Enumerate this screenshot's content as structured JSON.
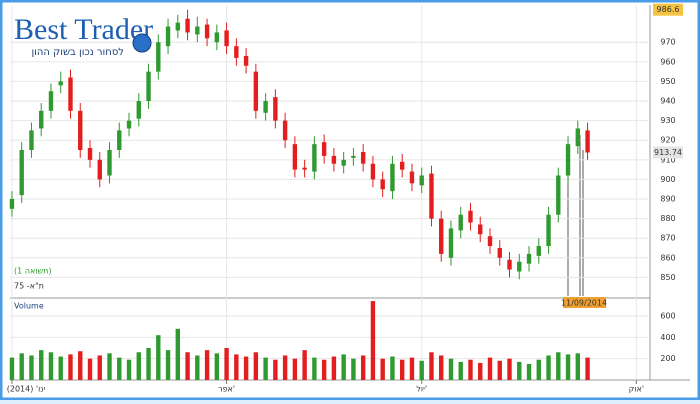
{
  "logo": {
    "title": "Best Trader",
    "tagline": "לסחור נכון בשוק ההון"
  },
  "chart_data": {
    "type": "candlestick",
    "index_name": "ת\"א- 75",
    "mode_label": "(תשואה 1)",
    "volume_title": "Volume",
    "crosshair_date": "11/09/2014",
    "max_value": 986.6,
    "last_value": 913.74,
    "up_color": "#2f9a2f",
    "down_color": "#e41e1e",
    "grid": true,
    "xlim": [
      -0.2,
      65.4
    ],
    "xticks": [
      {
        "value": 0,
        "label": "ינו' (2014)"
      },
      {
        "value": 22,
        "label": "אפר'"
      },
      {
        "value": 42,
        "label": "יול'"
      },
      {
        "value": 64,
        "label": "אוק'"
      }
    ],
    "ylim": [
      840,
      989
    ],
    "yticks": [
      850,
      860,
      870,
      880,
      890,
      900,
      910,
      920,
      930,
      940,
      950,
      960,
      970
    ],
    "open": [
      885,
      892,
      915,
      926,
      935,
      948,
      952,
      935,
      916,
      910,
      902,
      915,
      926,
      931,
      940,
      955,
      968,
      976,
      982,
      974,
      979,
      970,
      976,
      968,
      963,
      955,
      934,
      942,
      930,
      918,
      906,
      904,
      919,
      912,
      907,
      911,
      914,
      908,
      900,
      894,
      909,
      904,
      897,
      903,
      880,
      860,
      874,
      884,
      877,
      871,
      865,
      859,
      853,
      857,
      861,
      866,
      882,
      902,
      917,
      925
    ],
    "high": [
      894,
      919,
      929,
      939,
      949,
      955,
      956,
      939,
      920,
      914,
      919,
      929,
      934,
      944,
      959,
      974,
      982,
      984,
      986.6,
      983,
      982,
      979,
      980,
      972,
      967,
      959,
      944,
      946,
      934,
      922,
      910,
      922,
      923,
      916,
      914,
      916,
      918,
      912,
      904,
      912,
      913,
      908,
      906,
      907,
      884,
      879,
      886,
      888,
      881,
      875,
      869,
      863,
      862,
      866,
      870,
      886,
      906,
      922,
      930,
      929
    ],
    "low": [
      881,
      888,
      911,
      922,
      931,
      944,
      931,
      911,
      906,
      896,
      898,
      911,
      922,
      927,
      936,
      951,
      964,
      972,
      971,
      970,
      968,
      966,
      964,
      958,
      954,
      931,
      930,
      926,
      916,
      901,
      901,
      900,
      908,
      904,
      903,
      907,
      904,
      896,
      891,
      890,
      901,
      894,
      893,
      876,
      858,
      856,
      870,
      874,
      868,
      862,
      856,
      850,
      849,
      853,
      857,
      862,
      878,
      898,
      913,
      910
    ],
    "close": [
      890,
      915,
      925,
      935,
      945,
      950,
      935,
      915,
      910,
      900,
      915,
      925,
      930,
      940,
      955,
      970,
      978,
      980,
      975,
      978,
      972,
      975,
      968,
      962,
      958,
      935,
      940,
      930,
      920,
      905,
      905,
      918,
      912,
      908,
      910,
      912,
      908,
      900,
      895,
      908,
      905,
      898,
      902,
      880,
      862,
      875,
      882,
      878,
      872,
      866,
      860,
      854,
      858,
      862,
      866,
      882,
      902,
      918,
      926,
      913.74
    ],
    "volume": [
      210,
      250,
      230,
      280,
      260,
      220,
      240,
      270,
      200,
      230,
      250,
      210,
      190,
      260,
      300,
      420,
      280,
      480,
      260,
      230,
      280,
      250,
      300,
      240,
      220,
      260,
      210,
      190,
      230,
      200,
      280,
      210,
      190,
      220,
      240,
      200,
      230,
      740,
      200,
      220,
      190,
      210,
      180,
      260,
      230,
      200,
      170,
      190,
      160,
      210,
      180,
      200,
      170,
      150,
      190,
      230,
      260,
      240,
      250,
      210
    ],
    "volume_ylim": [
      0,
      750
    ],
    "volume_yticks": [
      200,
      400,
      600
    ]
  }
}
